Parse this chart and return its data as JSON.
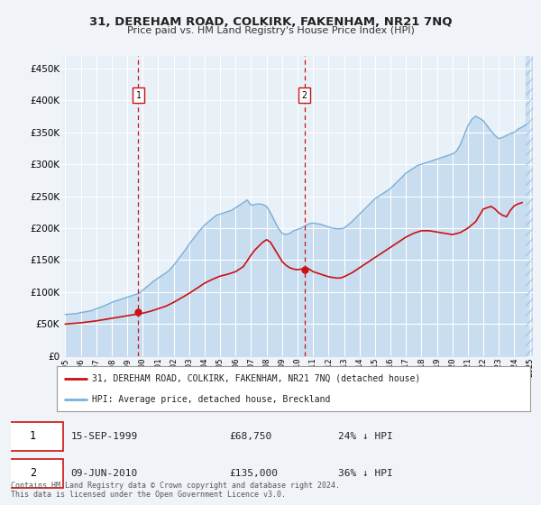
{
  "title": "31, DEREHAM ROAD, COLKIRK, FAKENHAM, NR21 7NQ",
  "subtitle": "Price paid vs. HM Land Registry's House Price Index (HPI)",
  "yticks": [
    0,
    50000,
    100000,
    150000,
    200000,
    250000,
    300000,
    350000,
    400000,
    450000
  ],
  "xlim_start": 1994.8,
  "xlim_end": 2025.2,
  "ylim": [
    0,
    470000
  ],
  "background_color": "#f0f4f8",
  "plot_bg_color": "#e8f0f8",
  "grid_color": "#ffffff",
  "hpi_color": "#7ab0d8",
  "price_color": "#cc1111",
  "hpi_fill_color": "#c8ddf0",
  "marker1_year": 1999.71,
  "marker1_price": 68750,
  "marker1_label": "1",
  "marker2_year": 2010.44,
  "marker2_price": 135000,
  "marker2_label": "2",
  "legend_line1": "31, DEREHAM ROAD, COLKIRK, FAKENHAM, NR21 7NQ (detached house)",
  "legend_line2": "HPI: Average price, detached house, Breckland",
  "footnote": "Contains HM Land Registry data © Crown copyright and database right 2024.\nThis data is licensed under the Open Government Licence v3.0.",
  "hpi_x": [
    1995.0,
    1995.25,
    1995.5,
    1995.75,
    1996.0,
    1996.25,
    1996.5,
    1996.75,
    1997.0,
    1997.25,
    1997.5,
    1997.75,
    1998.0,
    1998.25,
    1998.5,
    1998.75,
    1999.0,
    1999.25,
    1999.5,
    1999.75,
    2000.0,
    2000.25,
    2000.5,
    2000.75,
    2001.0,
    2001.25,
    2001.5,
    2001.75,
    2002.0,
    2002.25,
    2002.5,
    2002.75,
    2003.0,
    2003.25,
    2003.5,
    2003.75,
    2004.0,
    2004.25,
    2004.5,
    2004.75,
    2005.0,
    2005.25,
    2005.5,
    2005.75,
    2006.0,
    2006.25,
    2006.5,
    2006.75,
    2007.0,
    2007.25,
    2007.5,
    2007.75,
    2008.0,
    2008.25,
    2008.5,
    2008.75,
    2009.0,
    2009.25,
    2009.5,
    2009.75,
    2010.0,
    2010.25,
    2010.5,
    2010.75,
    2011.0,
    2011.25,
    2011.5,
    2011.75,
    2012.0,
    2012.25,
    2012.5,
    2012.75,
    2013.0,
    2013.25,
    2013.5,
    2013.75,
    2014.0,
    2014.25,
    2014.5,
    2014.75,
    2015.0,
    2015.25,
    2015.5,
    2015.75,
    2016.0,
    2016.25,
    2016.5,
    2016.75,
    2017.0,
    2017.25,
    2017.5,
    2017.75,
    2018.0,
    2018.25,
    2018.5,
    2018.75,
    2019.0,
    2019.25,
    2019.5,
    2019.75,
    2020.0,
    2020.25,
    2020.5,
    2020.75,
    2021.0,
    2021.25,
    2021.5,
    2021.75,
    2022.0,
    2022.25,
    2022.5,
    2022.75,
    2023.0,
    2023.25,
    2023.5,
    2023.75,
    2024.0,
    2024.25,
    2024.5,
    2024.75
  ],
  "hpi_y": [
    65000,
    65500,
    66000,
    66500,
    68000,
    69000,
    70000,
    71500,
    74000,
    76000,
    78500,
    81000,
    84000,
    86000,
    88000,
    90000,
    92000,
    94000,
    96000,
    98000,
    103000,
    108000,
    113000,
    118000,
    122000,
    126000,
    130000,
    135000,
    142000,
    150000,
    158000,
    166000,
    175000,
    183000,
    191000,
    198000,
    205000,
    210000,
    215000,
    220000,
    222000,
    224000,
    226000,
    228000,
    232000,
    236000,
    240000,
    244000,
    236000,
    237000,
    238000,
    237000,
    234000,
    224000,
    212000,
    200000,
    192000,
    190000,
    192000,
    196000,
    198000,
    200000,
    204000,
    207000,
    208000,
    207000,
    206000,
    204000,
    202000,
    200000,
    199000,
    199000,
    200000,
    205000,
    210000,
    216000,
    222000,
    228000,
    234000,
    240000,
    246000,
    250000,
    254000,
    258000,
    262000,
    268000,
    274000,
    280000,
    286000,
    290000,
    294000,
    298000,
    300000,
    302000,
    304000,
    306000,
    308000,
    310000,
    312000,
    314000,
    316000,
    320000,
    330000,
    345000,
    360000,
    370000,
    375000,
    372000,
    368000,
    360000,
    352000,
    345000,
    340000,
    342000,
    345000,
    348000,
    350000,
    355000,
    358000,
    362000
  ],
  "price_x": [
    1995.0,
    1995.5,
    1996.0,
    1996.5,
    1997.0,
    1997.5,
    1998.0,
    1998.5,
    1999.0,
    1999.5,
    2000.0,
    2000.5,
    2001.0,
    2001.5,
    2002.0,
    2002.5,
    2003.0,
    2003.5,
    2004.0,
    2004.5,
    2005.0,
    2005.5,
    2006.0,
    2006.5,
    2007.0,
    2007.25,
    2007.5,
    2007.75,
    2008.0,
    2008.25,
    2008.5,
    2008.75,
    2009.0,
    2009.25,
    2009.5,
    2009.75,
    2010.0,
    2010.25,
    2010.5,
    2010.75,
    2011.0,
    2011.25,
    2011.5,
    2011.75,
    2012.0,
    2012.25,
    2012.5,
    2012.75,
    2013.0,
    2013.5,
    2014.0,
    2014.5,
    2015.0,
    2015.5,
    2016.0,
    2016.5,
    2017.0,
    2017.5,
    2018.0,
    2018.5,
    2019.0,
    2019.5,
    2020.0,
    2020.5,
    2021.0,
    2021.5,
    2022.0,
    2022.25,
    2022.5,
    2022.75,
    2023.0,
    2023.25,
    2023.5,
    2023.75,
    2024.0,
    2024.25,
    2024.5
  ],
  "price_y": [
    50000,
    51000,
    52000,
    53500,
    55000,
    57000,
    59000,
    61000,
    63000,
    65000,
    67000,
    70000,
    74000,
    78000,
    84000,
    91000,
    98000,
    106000,
    114000,
    120000,
    125000,
    128000,
    132000,
    140000,
    158000,
    166000,
    172000,
    178000,
    182000,
    178000,
    168000,
    158000,
    148000,
    142000,
    138000,
    136000,
    135000,
    136000,
    138000,
    136000,
    132000,
    130000,
    128000,
    126000,
    124000,
    123000,
    122000,
    122000,
    124000,
    130000,
    138000,
    146000,
    154000,
    162000,
    170000,
    178000,
    186000,
    192000,
    196000,
    196000,
    194000,
    192000,
    190000,
    193000,
    200000,
    210000,
    230000,
    232000,
    234000,
    230000,
    224000,
    220000,
    218000,
    228000,
    235000,
    238000,
    240000
  ],
  "xticks": [
    1995,
    1996,
    1997,
    1998,
    1999,
    2000,
    2001,
    2002,
    2003,
    2004,
    2005,
    2006,
    2007,
    2008,
    2009,
    2010,
    2011,
    2012,
    2013,
    2014,
    2015,
    2016,
    2017,
    2018,
    2019,
    2020,
    2021,
    2022,
    2023,
    2024,
    2025
  ]
}
